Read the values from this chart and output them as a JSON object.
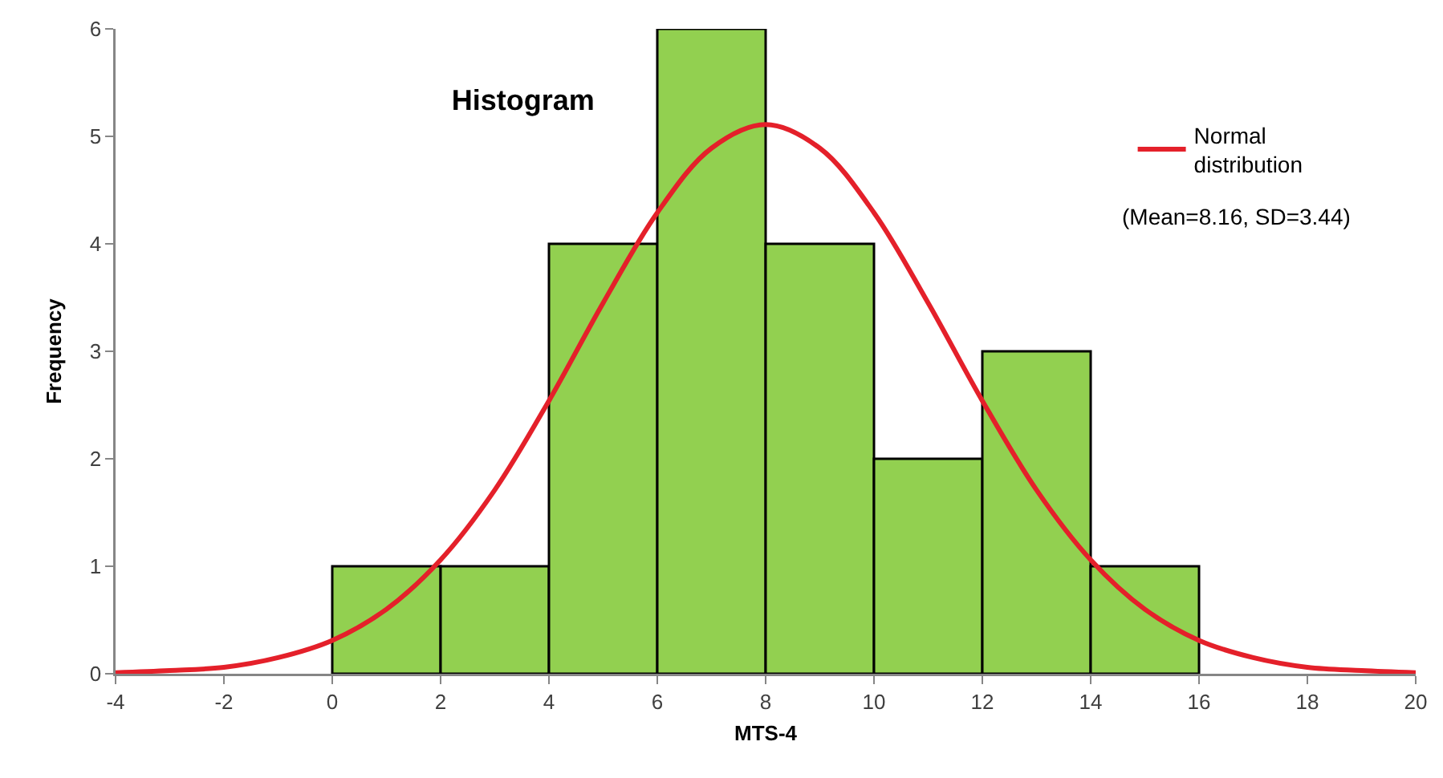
{
  "chart_data": {
    "type": "histogram",
    "title": "Histogram",
    "xlabel": "MTS-4",
    "ylabel": "Frequency",
    "annotations": [
      "(Mean=8.16, SD=3.44)"
    ],
    "bins": [
      0,
      2,
      4,
      6,
      8,
      10,
      12,
      14,
      16
    ],
    "series": [
      {
        "color": "#92d050",
        "values": [
          1,
          1,
          4,
          6,
          4,
          2,
          3,
          1
        ]
      },
      {
        "type": "line",
        "name": "Normal distribution",
        "color": "#e4202a",
        "x": [
          -4,
          -3,
          -2,
          -1,
          0,
          1,
          2,
          3,
          4,
          5,
          6,
          7,
          8,
          9,
          10,
          11,
          12,
          13,
          14,
          15,
          16,
          17,
          18,
          19,
          20
        ],
        "values": [
          0.01,
          0.03,
          0.06,
          0.15,
          0.31,
          0.6,
          1.06,
          1.71,
          2.54,
          3.45,
          4.29,
          4.89,
          5.11,
          4.89,
          4.29,
          3.45,
          2.54,
          1.71,
          1.06,
          0.6,
          0.31,
          0.15,
          0.06,
          0.03,
          0.01
        ]
      }
    ],
    "xlim": [
      -4,
      20
    ],
    "xticks": [
      -4,
      -2,
      0,
      2,
      4,
      6,
      8,
      10,
      12,
      14,
      16,
      18,
      20
    ],
    "ylim": [
      0,
      6
    ],
    "yticks": [
      0,
      1,
      2,
      3,
      4,
      5,
      6
    ],
    "grid": false,
    "legend": "top right",
    "marker": "none",
    "line_style": "solid"
  }
}
